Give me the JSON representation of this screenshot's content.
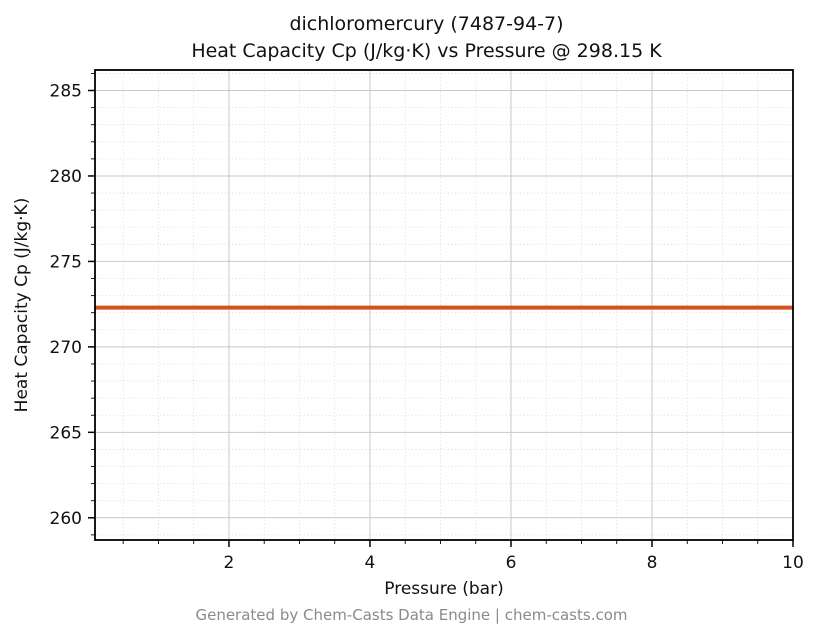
{
  "title_line1": "dichloromercury (7487-94-7)",
  "title_line2": "Heat Capacity Cp (J/kg·K) vs Pressure @ 298.15 K",
  "footer": "Generated by Chem-Casts Data Engine | chem-casts.com",
  "chart_data": {
    "type": "line",
    "title": "dichloromercury (7487-94-7)\nHeat Capacity Cp (J/kg·K) vs Pressure @ 298.15 K",
    "xlabel": "Pressure (bar)",
    "ylabel": "Heat Capacity Cp (J/kg·K)",
    "x": [
      0.1,
      10
    ],
    "series": [
      {
        "name": "Cp",
        "values": [
          272.3,
          272.3
        ]
      }
    ],
    "constant_value": 272.3,
    "xlim": [
      0.1,
      10
    ],
    "ylim": [
      258.7,
      286.2
    ],
    "x_ticks": [
      2,
      4,
      6,
      8,
      10
    ],
    "y_ticks": [
      260,
      265,
      270,
      275,
      280,
      285
    ],
    "x_minor_step": 0.5,
    "y_minor_step": 1,
    "grid": true,
    "legend": "none",
    "line_color": "#d2521e",
    "line_width": 4,
    "spine_color": "#000000",
    "major_grid_color": "#c9c9c9",
    "minor_grid_color": "#dadada",
    "tick_label_color": "#111111"
  }
}
